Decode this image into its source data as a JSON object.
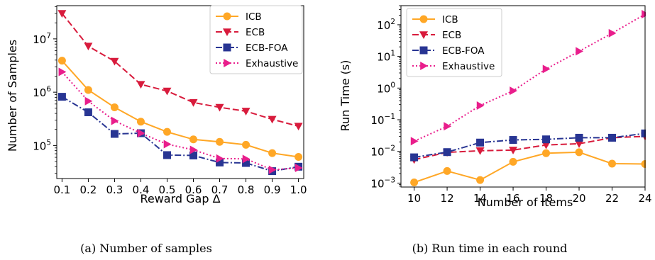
{
  "chart_data": [
    {
      "type": "line",
      "y_scale": "log",
      "xlabel": "Reward Gap Δ",
      "ylabel": "Number of Samples",
      "caption": "(a) Number of samples",
      "xlim": [
        0.08,
        1.02
      ],
      "ylim": [
        24000,
        42000000
      ],
      "x_ticks": [
        "0.1",
        "0.2",
        "0.3",
        "0.4",
        "0.5",
        "0.6",
        "0.7",
        "0.8",
        "0.9",
        "1.0"
      ],
      "y_ticks": [
        {
          "base": "10",
          "exp": "5",
          "value": 100000
        },
        {
          "base": "10",
          "exp": "6",
          "value": 1000000
        },
        {
          "base": "10",
          "exp": "7",
          "value": 10000000
        }
      ],
      "legend_position": "top-right",
      "x": [
        0.1,
        0.2,
        0.3,
        0.4,
        0.5,
        0.6,
        0.7,
        0.8,
        0.9,
        1.0
      ],
      "series": [
        {
          "name": "ICB",
          "color": "#ffa726",
          "marker": "circle",
          "linestyle": "solid",
          "values": [
            3900000,
            1100000,
            520000,
            280000,
            180000,
            130000,
            117000,
            103000,
            72000,
            61000
          ]
        },
        {
          "name": "ECB",
          "color": "#d81b3c",
          "marker": "triangle-down",
          "linestyle": "dashed",
          "values": [
            30000000,
            7300000,
            3800000,
            1400000,
            1050000,
            640000,
            520000,
            440000,
            310000,
            230000
          ]
        },
        {
          "name": "ECB-FOA",
          "color": "#283593",
          "marker": "square",
          "linestyle": "dashdot",
          "values": [
            820000,
            420000,
            165000,
            170000,
            66000,
            65000,
            48000,
            47000,
            33000,
            40000
          ]
        },
        {
          "name": "Exhaustive",
          "color": "#e91e8c",
          "marker": "triangle-right",
          "linestyle": "dotted",
          "values": [
            2400000,
            680000,
            290000,
            170000,
            106000,
            83000,
            57000,
            56000,
            35000,
            38000
          ]
        }
      ]
    },
    {
      "type": "line",
      "y_scale": "log",
      "xlabel": "Number of Items",
      "ylabel": "Run Time (s)",
      "caption": "(b) Run time in each round",
      "xlim": [
        9.2,
        24.0
      ],
      "ylim": [
        0.00075,
        400
      ],
      "x_ticks": [
        "10",
        "12",
        "14",
        "16",
        "18",
        "20",
        "22",
        "24"
      ],
      "y_ticks": [
        {
          "base": "10",
          "exp": "−3",
          "value": 0.001
        },
        {
          "base": "10",
          "exp": "−2",
          "value": 0.01
        },
        {
          "base": "10",
          "exp": "−1",
          "value": 0.1
        },
        {
          "base": "10",
          "exp": "0",
          "value": 1
        },
        {
          "base": "10",
          "exp": "1",
          "value": 10
        },
        {
          "base": "10",
          "exp": "2",
          "value": 100
        }
      ],
      "legend_position": "top-left",
      "x": [
        10,
        12,
        14,
        16,
        18,
        20,
        22,
        24
      ],
      "series": [
        {
          "name": "ICB",
          "color": "#ffa726",
          "marker": "circle",
          "linestyle": "solid",
          "values": [
            0.00105,
            0.0024,
            0.00125,
            0.0047,
            0.0088,
            0.0094,
            0.0041,
            0.004
          ]
        },
        {
          "name": "ECB",
          "color": "#d81b3c",
          "marker": "triangle-down",
          "linestyle": "dashed",
          "values": [
            0.0055,
            0.0093,
            0.0105,
            0.011,
            0.016,
            0.0175,
            0.027,
            0.03
          ]
        },
        {
          "name": "ECB-FOA",
          "color": "#283593",
          "marker": "square",
          "linestyle": "dashdot",
          "values": [
            0.0065,
            0.0095,
            0.019,
            0.023,
            0.024,
            0.027,
            0.027,
            0.037
          ]
        },
        {
          "name": "Exhaustive",
          "color": "#e91e8c",
          "marker": "triangle-right",
          "linestyle": "dotted",
          "values": [
            0.021,
            0.062,
            0.28,
            0.82,
            4.0,
            14.5,
            54,
            215
          ]
        }
      ]
    }
  ]
}
